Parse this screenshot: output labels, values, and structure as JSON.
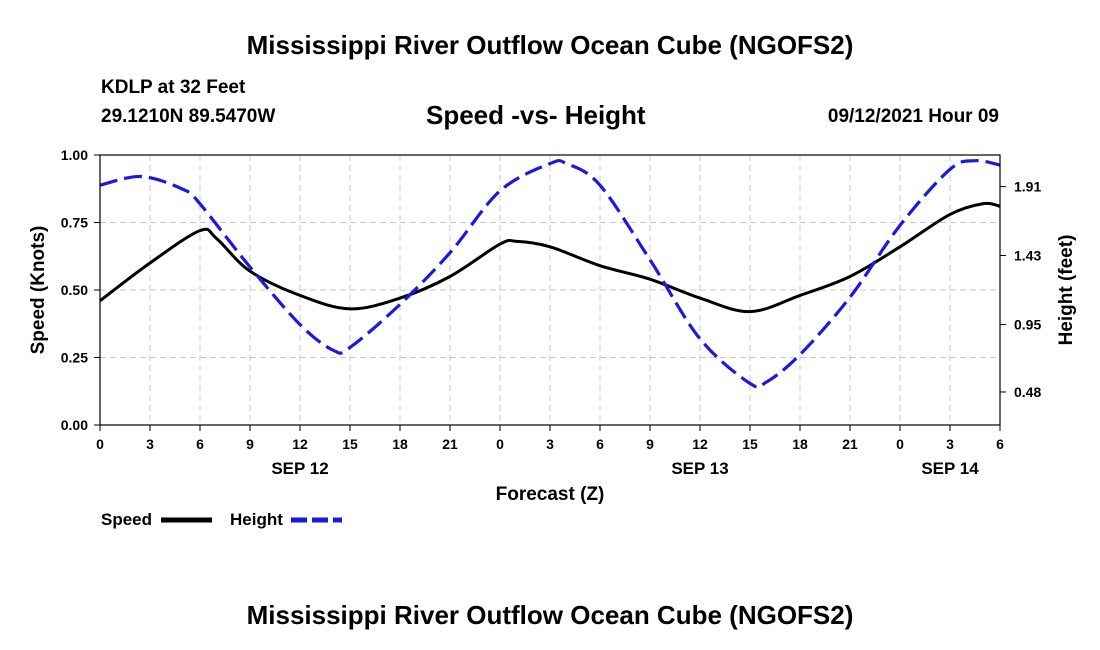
{
  "header": {
    "title_top": "Mississippi River Outflow Ocean Cube (NGOFS2)",
    "title_bottom": "Mississippi River Outflow Ocean Cube (NGOFS2)",
    "station": "KDLP at 32 Feet",
    "coords": "29.1210N  89.5470W",
    "datetime": "09/12/2021 Hour 09"
  },
  "legend": {
    "speed_label": "Speed",
    "height_label": "Height"
  },
  "chart_data": {
    "type": "line",
    "title": "Speed -vs- Height",
    "xlabel": "Forecast (Z)",
    "ylabel": "Speed (Knots)",
    "ylabel_right": "Height (feet)",
    "x_range_hours": [
      0,
      54
    ],
    "ylim": [
      0,
      1.0
    ],
    "ylim_right": [
      0.25,
      2.13
    ],
    "grid": true,
    "x_ticks": [
      {
        "h": 0,
        "label": "0"
      },
      {
        "h": 3,
        "label": "3"
      },
      {
        "h": 6,
        "label": "6"
      },
      {
        "h": 9,
        "label": "9"
      },
      {
        "h": 12,
        "label": "12"
      },
      {
        "h": 15,
        "label": "15"
      },
      {
        "h": 18,
        "label": "18"
      },
      {
        "h": 21,
        "label": "21"
      },
      {
        "h": 24,
        "label": "0"
      },
      {
        "h": 27,
        "label": "3"
      },
      {
        "h": 30,
        "label": "6"
      },
      {
        "h": 33,
        "label": "9"
      },
      {
        "h": 36,
        "label": "12"
      },
      {
        "h": 39,
        "label": "15"
      },
      {
        "h": 42,
        "label": "18"
      },
      {
        "h": 45,
        "label": "21"
      },
      {
        "h": 48,
        "label": "0"
      },
      {
        "h": 51,
        "label": "3"
      },
      {
        "h": 54,
        "label": "6"
      }
    ],
    "date_labels": [
      {
        "h": 12,
        "label": "SEP 12"
      },
      {
        "h": 36,
        "label": "SEP 13"
      },
      {
        "h": 51,
        "label": "SEP 14"
      }
    ],
    "y_ticks": [
      {
        "v": 0.0,
        "label": "0.00"
      },
      {
        "v": 0.25,
        "label": "0.25"
      },
      {
        "v": 0.5,
        "label": "0.50"
      },
      {
        "v": 0.75,
        "label": "0.75"
      },
      {
        "v": 1.0,
        "label": "1.00"
      }
    ],
    "y_ticks_right": [
      {
        "v": 0.48,
        "label": "0.48"
      },
      {
        "v": 0.95,
        "label": "0.95"
      },
      {
        "v": 1.43,
        "label": "1.43"
      },
      {
        "v": 1.91,
        "label": "1.91"
      }
    ],
    "series": [
      {
        "name": "Speed",
        "axis": "left",
        "color": "#000000",
        "style": "solid",
        "x": [
          0,
          3,
          6,
          7,
          9,
          12,
          15,
          18,
          21,
          24,
          25,
          27,
          30,
          33,
          36,
          39,
          42,
          45,
          48,
          51,
          53,
          54
        ],
        "values": [
          0.46,
          0.6,
          0.72,
          0.69,
          0.57,
          0.48,
          0.43,
          0.47,
          0.55,
          0.67,
          0.68,
          0.66,
          0.59,
          0.54,
          0.47,
          0.42,
          0.48,
          0.55,
          0.66,
          0.78,
          0.82,
          0.81
        ]
      },
      {
        "name": "Height",
        "axis": "right",
        "color": "#1a1adc",
        "style": "dashed",
        "x": [
          0,
          2.5,
          5,
          6,
          9,
          12,
          14,
          15,
          18,
          21,
          24,
          27,
          28,
          30,
          33,
          36,
          39,
          40,
          42,
          45,
          48,
          51,
          52.5,
          54
        ],
        "values": [
          1.92,
          1.98,
          1.89,
          1.79,
          1.35,
          0.95,
          0.77,
          0.79,
          1.09,
          1.45,
          1.88,
          2.07,
          2.07,
          1.92,
          1.4,
          0.85,
          0.54,
          0.55,
          0.74,
          1.14,
          1.64,
          2.03,
          2.09,
          2.06
        ]
      }
    ]
  }
}
